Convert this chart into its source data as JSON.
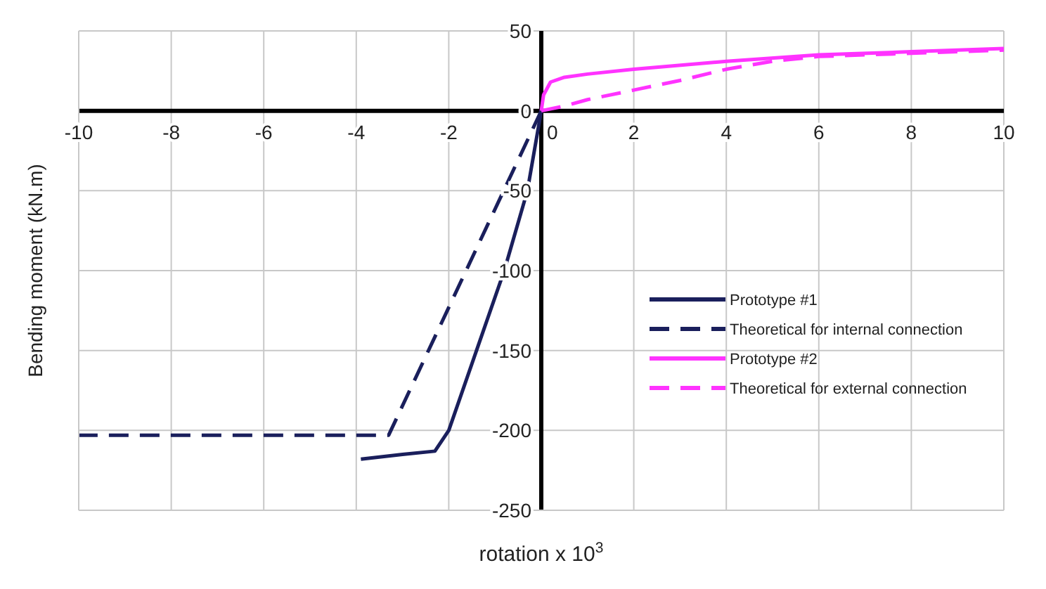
{
  "chart_data": {
    "type": "line",
    "xlabel": "rotation x 10$^{3}$",
    "ylabel": "Bending moment (kN.m)",
    "xlim": [
      -10,
      10
    ],
    "xticks": [
      -10,
      -8,
      -6,
      -4,
      -2,
      0,
      2,
      4,
      6,
      8,
      10
    ],
    "ylim": [
      -250,
      50
    ],
    "yticks": [
      -250,
      -200,
      -150,
      -100,
      -50,
      0,
      50
    ],
    "grid": true,
    "legend": "bottom right",
    "series": [
      {
        "name": "Prototype #1",
        "color": "#1a1f5c",
        "line_style": "solid",
        "x": [
          0,
          -0.3,
          -0.8,
          -1.4,
          -2.0,
          -2.3,
          -3.0,
          -3.9
        ],
        "values": [
          0,
          -50,
          -100,
          -150,
          -200,
          -213,
          -215,
          -218
        ]
      },
      {
        "name": "Theoretical for internal connection",
        "color": "#1a1f5c",
        "line_style": "dashed",
        "x": [
          0,
          -3.3,
          -10
        ],
        "values": [
          0,
          -203,
          -203
        ]
      },
      {
        "name": "Prototype #2",
        "color": "#ff33ff",
        "line_style": "solid",
        "x": [
          0,
          0.05,
          0.2,
          0.5,
          1,
          2,
          4,
          6,
          8,
          10
        ],
        "values": [
          0,
          10,
          18,
          21,
          23,
          26,
          31,
          35,
          37,
          39
        ]
      },
      {
        "name": "Theoretical for external connection",
        "color": "#ff33ff",
        "line_style": "dashed",
        "x": [
          0,
          0.5,
          1,
          2,
          3,
          4,
          5,
          6,
          8,
          10
        ],
        "values": [
          0,
          3,
          7,
          13,
          19,
          26,
          31,
          34,
          36,
          38
        ]
      }
    ]
  }
}
